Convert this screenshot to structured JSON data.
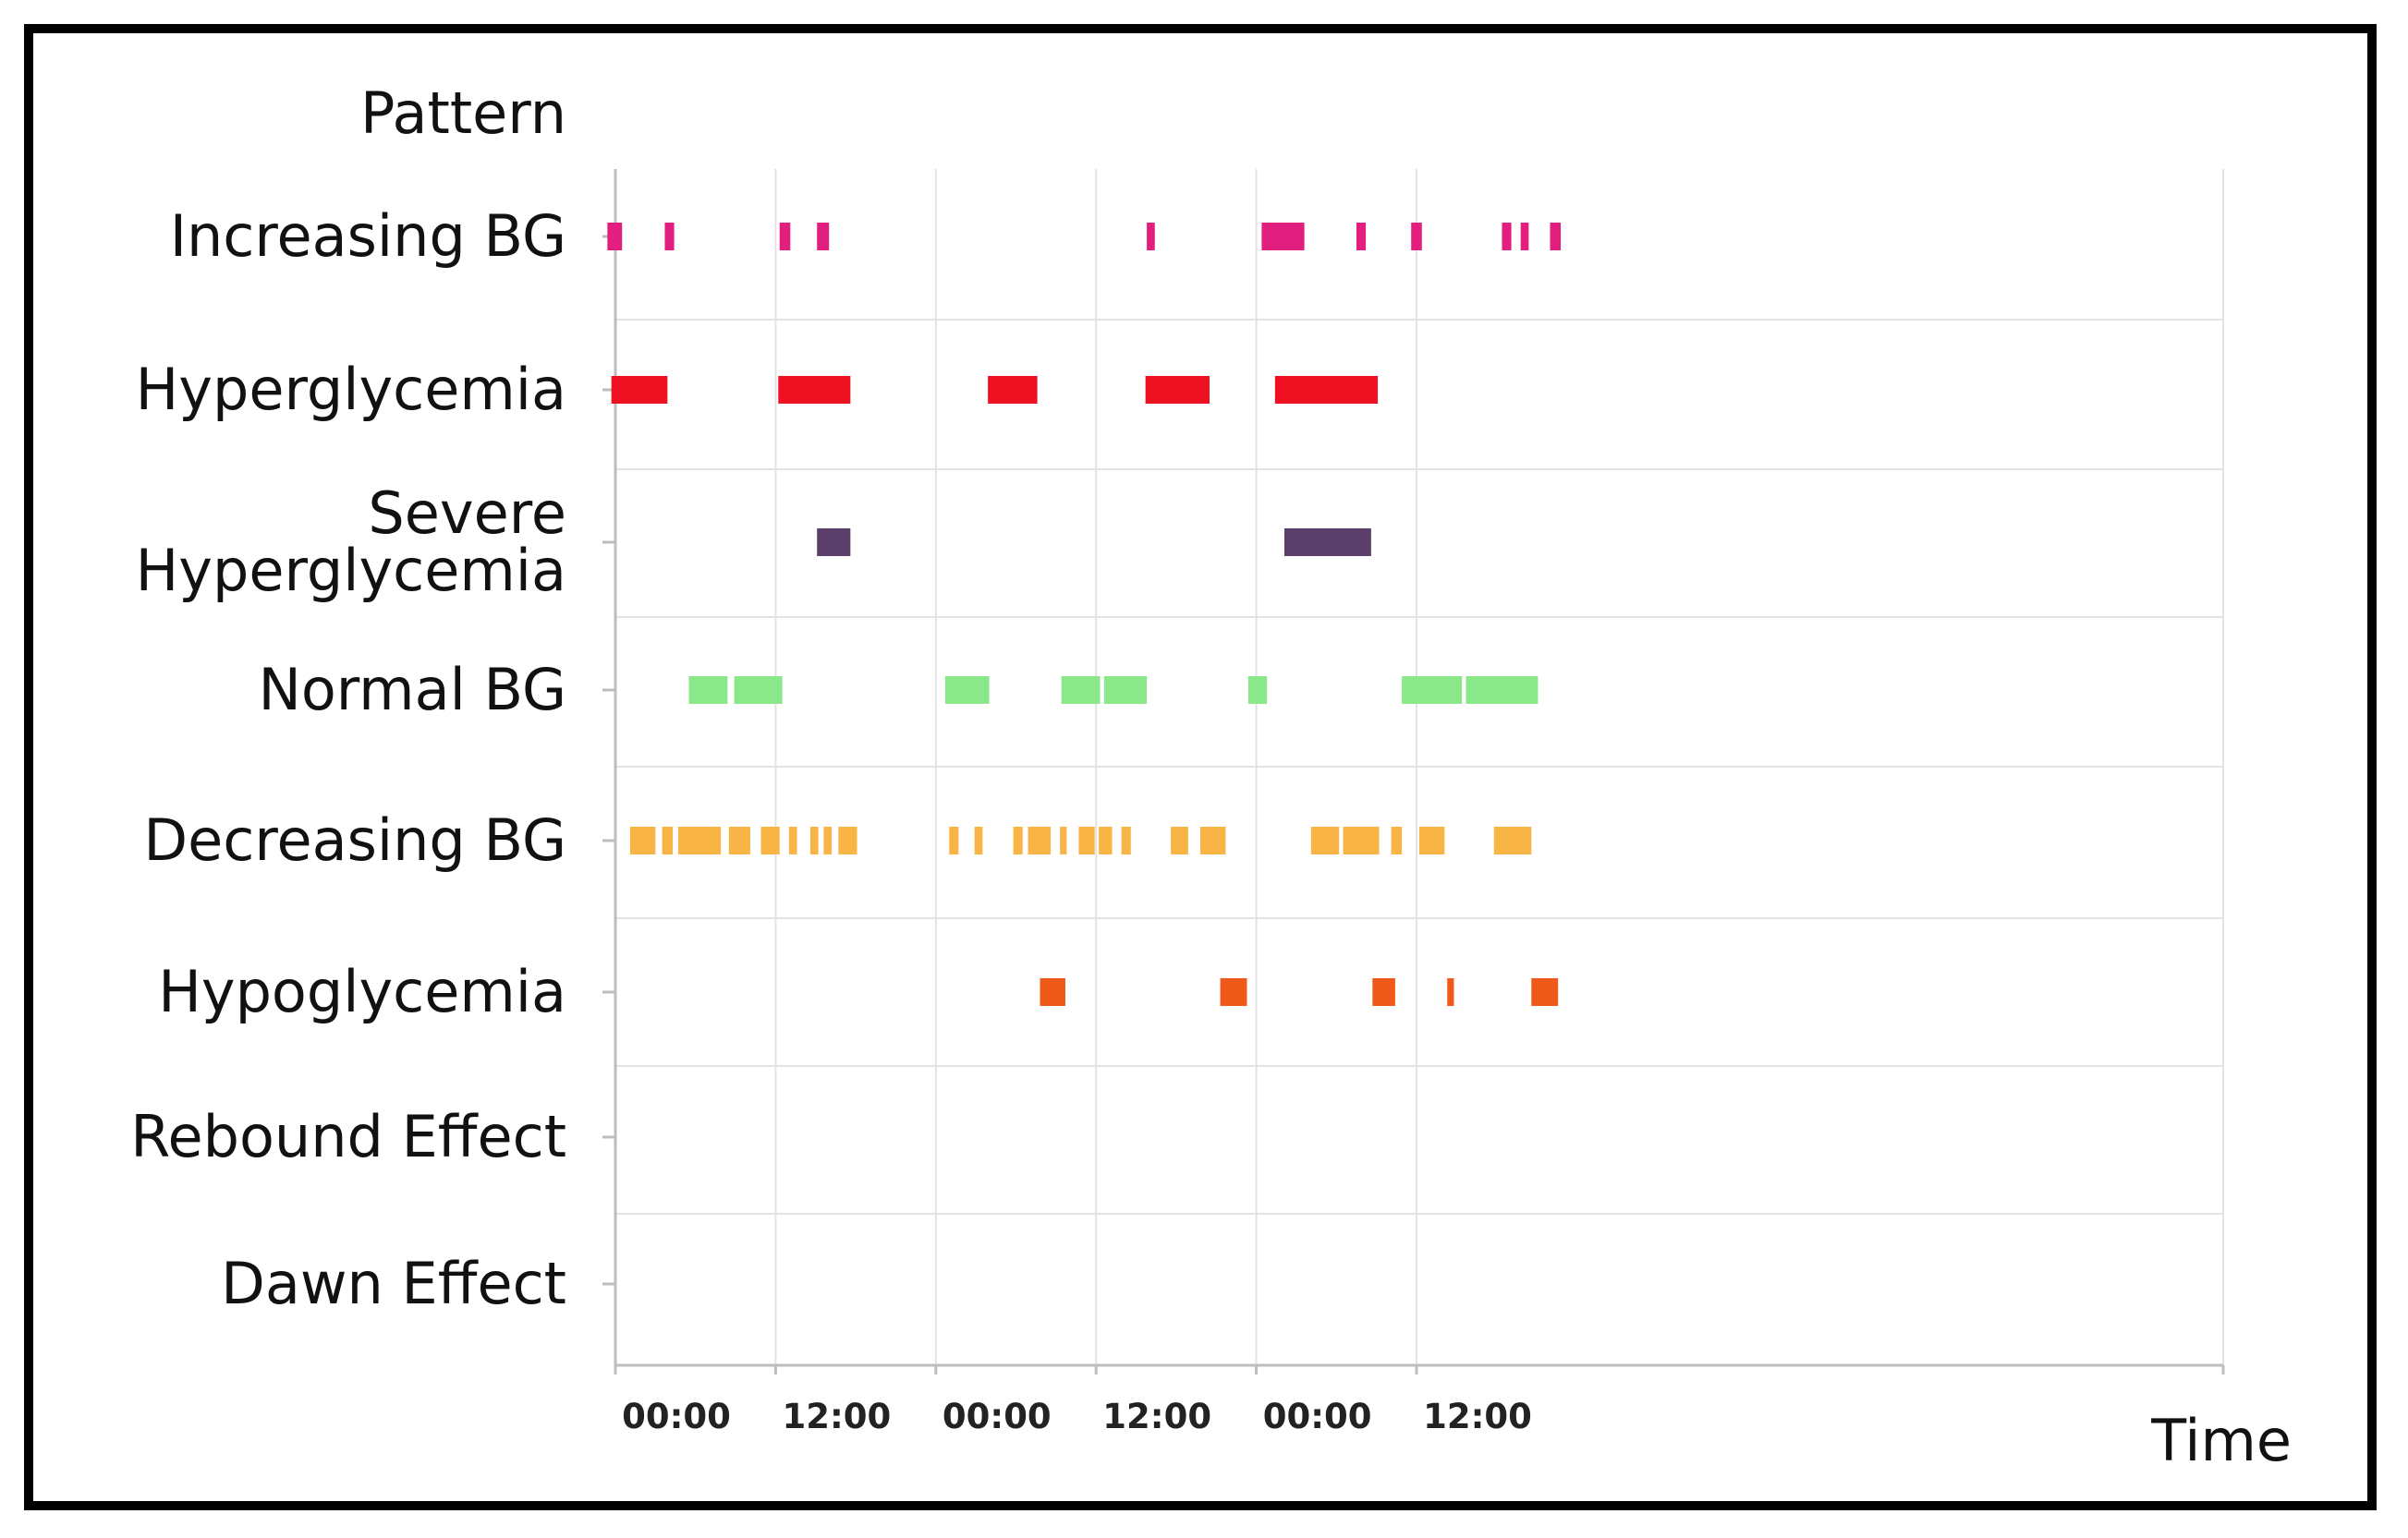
{
  "chart_data": {
    "type": "timeline",
    "title": "",
    "ylabel": "Pattern",
    "xlabel": "Time",
    "x_range_hours": [
      0,
      144
    ],
    "x_ticks": [
      {
        "label": "00:00",
        "hour": 0
      },
      {
        "label": "12:00",
        "hour": 12
      },
      {
        "label": "00:00",
        "hour": 24
      },
      {
        "label": "12:00",
        "hour": 36
      },
      {
        "label": "00:00",
        "hour": 48
      },
      {
        "label": "12:00",
        "hour": 60
      }
    ],
    "grid": true,
    "series": [
      {
        "name": "Increasing BG",
        "color": "#e21e7e",
        "segments": [
          [
            -0.6,
            0.5
          ],
          [
            3.7,
            4.4
          ],
          [
            12.3,
            13.1
          ],
          [
            15.1,
            16.0
          ],
          [
            39.8,
            40.4
          ],
          [
            48.4,
            51.6
          ],
          [
            55.5,
            56.2
          ],
          [
            59.6,
            60.4
          ],
          [
            66.4,
            67.1
          ],
          [
            67.8,
            68.4
          ],
          [
            70.0,
            70.8
          ]
        ]
      },
      {
        "name": "Hyperglycemia",
        "color": "#ee1122",
        "segments": [
          [
            -0.3,
            3.9
          ],
          [
            12.2,
            17.6
          ],
          [
            27.9,
            31.6
          ],
          [
            39.7,
            44.5
          ],
          [
            49.4,
            57.1
          ]
        ]
      },
      {
        "name": "Severe\nHyperglycemia",
        "color": "#5a3f6a",
        "segments": [
          [
            15.1,
            17.6
          ],
          [
            50.1,
            56.6
          ]
        ]
      },
      {
        "name": "Normal BG",
        "color": "#8ae88a",
        "segments": [
          [
            5.5,
            8.4
          ],
          [
            8.9,
            12.5
          ],
          [
            24.7,
            28.0
          ],
          [
            33.4,
            36.3
          ],
          [
            36.6,
            39.8
          ],
          [
            47.4,
            48.8
          ],
          [
            58.9,
            63.4
          ],
          [
            63.7,
            69.1
          ]
        ]
      },
      {
        "name": "Decreasing BG",
        "color": "#f8b445",
        "segments": [
          [
            1.1,
            3.0
          ],
          [
            3.5,
            4.3
          ],
          [
            4.7,
            7.9
          ],
          [
            8.5,
            10.1
          ],
          [
            10.9,
            12.3
          ],
          [
            13.0,
            13.6
          ],
          [
            14.6,
            15.2
          ],
          [
            15.6,
            16.2
          ],
          [
            16.7,
            18.1
          ],
          [
            25.0,
            25.7
          ],
          [
            26.9,
            27.5
          ],
          [
            29.8,
            30.5
          ],
          [
            30.9,
            32.6
          ],
          [
            33.3,
            33.8
          ],
          [
            34.7,
            35.9
          ],
          [
            36.2,
            37.2
          ],
          [
            37.9,
            38.6
          ],
          [
            41.6,
            42.9
          ],
          [
            43.8,
            45.7
          ],
          [
            52.1,
            54.2
          ],
          [
            54.5,
            57.2
          ],
          [
            58.1,
            58.9
          ],
          [
            60.2,
            62.1
          ],
          [
            65.8,
            68.6
          ]
        ]
      },
      {
        "name": "Hypoglycemia",
        "color": "#ef5a1a",
        "segments": [
          [
            31.8,
            33.7
          ],
          [
            45.3,
            47.3
          ],
          [
            56.7,
            58.4
          ],
          [
            62.3,
            62.8
          ],
          [
            68.6,
            70.6
          ]
        ]
      },
      {
        "name": "Rebound Effect",
        "color": "#999999",
        "segments": []
      },
      {
        "name": "Dawn Effect",
        "color": "#999999",
        "segments": []
      }
    ]
  }
}
